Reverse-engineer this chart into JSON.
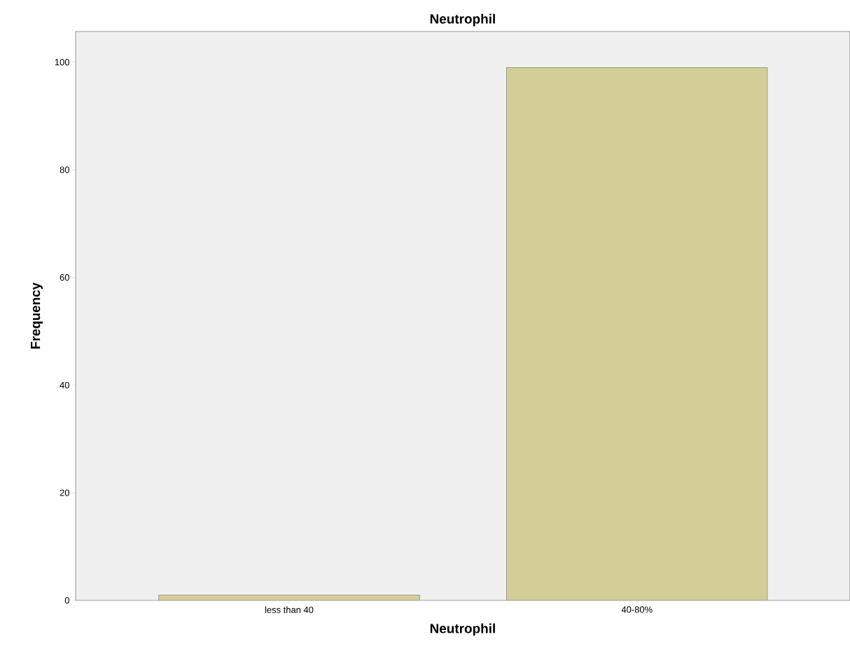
{
  "chart_data": {
    "type": "bar",
    "title": "Neutrophil",
    "xlabel": "Neutrophil",
    "ylabel": "Frequency",
    "categories": [
      "less than 40",
      "40-80%"
    ],
    "values": [
      1,
      99
    ],
    "color": "#d3ce97",
    "ylim": [
      0,
      105.7
    ],
    "yticks": [
      0,
      20,
      40,
      60,
      80,
      100
    ]
  }
}
